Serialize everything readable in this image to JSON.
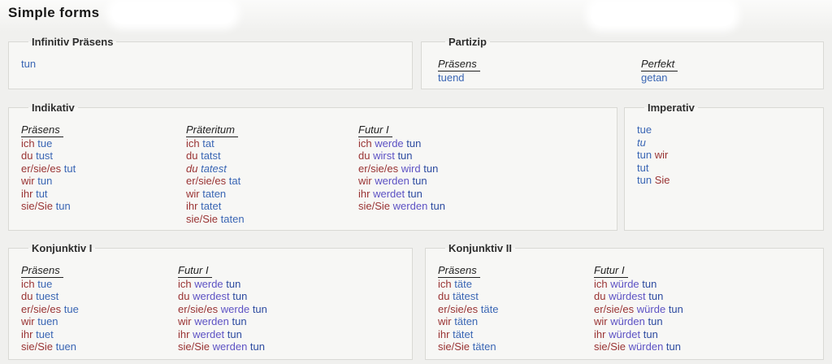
{
  "page": {
    "title": "Simple forms"
  },
  "colors": {
    "pronoun": "#993333",
    "verb": "#3a66b4",
    "aux": "#5d52c4",
    "infinitive": "#2d4ba0",
    "header_text": "#222222",
    "legend_text": "#2d2d2d",
    "border": "#d9d9d5",
    "page_bg": "#f0f0ee",
    "box_bg": "#f7f7f5"
  },
  "sections": {
    "infinitiv": {
      "legend": "Infinitiv Präsens",
      "columns": [
        {
          "header": "",
          "rows": [
            [
              {
                "t": "tun",
                "k": "verb"
              }
            ]
          ]
        }
      ]
    },
    "partizip": {
      "legend": "Partizip",
      "columns": [
        {
          "header": "Präsens",
          "rows": [
            [
              {
                "t": "tuend",
                "k": "verb"
              }
            ]
          ]
        },
        {
          "header": "Perfekt",
          "rows": [
            [
              {
                "t": "getan",
                "k": "verb"
              }
            ]
          ]
        }
      ]
    },
    "indikativ": {
      "legend": "Indikativ",
      "columns": [
        {
          "header": "Präsens",
          "rows": [
            [
              {
                "t": "ich",
                "k": "pronoun"
              },
              {
                "t": "tue",
                "k": "verb"
              }
            ],
            [
              {
                "t": "du",
                "k": "pronoun"
              },
              {
                "t": "tust",
                "k": "verb"
              }
            ],
            [
              {
                "t": "er/sie/es",
                "k": "pronoun"
              },
              {
                "t": "tut",
                "k": "verb"
              }
            ],
            [
              {
                "t": "wir",
                "k": "pronoun"
              },
              {
                "t": "tun",
                "k": "verb"
              }
            ],
            [
              {
                "t": "ihr",
                "k": "pronoun"
              },
              {
                "t": "tut",
                "k": "verb"
              }
            ],
            [
              {
                "t": "sie/Sie",
                "k": "pronoun"
              },
              {
                "t": "tun",
                "k": "verb"
              }
            ]
          ]
        },
        {
          "header": "Präteritum",
          "rows": [
            [
              {
                "t": "ich",
                "k": "pronoun"
              },
              {
                "t": "tat",
                "k": "verb"
              }
            ],
            [
              {
                "t": "du",
                "k": "pronoun"
              },
              {
                "t": "tatst",
                "k": "verb"
              }
            ],
            [
              {
                "t": "du",
                "k": "pronoun",
                "i": true
              },
              {
                "t": "tatest",
                "k": "verb",
                "i": true
              }
            ],
            [
              {
                "t": "er/sie/es",
                "k": "pronoun"
              },
              {
                "t": "tat",
                "k": "verb"
              }
            ],
            [
              {
                "t": "wir",
                "k": "pronoun"
              },
              {
                "t": "taten",
                "k": "verb"
              }
            ],
            [
              {
                "t": "ihr",
                "k": "pronoun"
              },
              {
                "t": "tatet",
                "k": "verb"
              }
            ],
            [
              {
                "t": "sie/Sie",
                "k": "pronoun"
              },
              {
                "t": "taten",
                "k": "verb"
              }
            ]
          ]
        },
        {
          "header": "Futur I",
          "rows": [
            [
              {
                "t": "ich",
                "k": "pronoun"
              },
              {
                "t": "werde",
                "k": "aux"
              },
              {
                "t": "tun",
                "k": "inf"
              }
            ],
            [
              {
                "t": "du",
                "k": "pronoun"
              },
              {
                "t": "wirst",
                "k": "aux"
              },
              {
                "t": "tun",
                "k": "inf"
              }
            ],
            [
              {
                "t": "er/sie/es",
                "k": "pronoun"
              },
              {
                "t": "wird",
                "k": "aux"
              },
              {
                "t": "tun",
                "k": "inf"
              }
            ],
            [
              {
                "t": "wir",
                "k": "pronoun"
              },
              {
                "t": "werden",
                "k": "aux"
              },
              {
                "t": "tun",
                "k": "inf"
              }
            ],
            [
              {
                "t": "ihr",
                "k": "pronoun"
              },
              {
                "t": "werdet",
                "k": "aux"
              },
              {
                "t": "tun",
                "k": "inf"
              }
            ],
            [
              {
                "t": "sie/Sie",
                "k": "pronoun"
              },
              {
                "t": "werden",
                "k": "aux"
              },
              {
                "t": "tun",
                "k": "inf"
              }
            ]
          ]
        }
      ]
    },
    "imperativ": {
      "legend": "Imperativ",
      "columns": [
        {
          "header": "",
          "rows": [
            [
              {
                "t": "tue",
                "k": "verb"
              }
            ],
            [
              {
                "t": "tu",
                "k": "verb",
                "i": true
              }
            ],
            [
              {
                "t": "tun",
                "k": "verb"
              },
              {
                "t": "wir",
                "k": "pronoun"
              }
            ],
            [
              {
                "t": "tut",
                "k": "verb"
              }
            ],
            [
              {
                "t": "tun",
                "k": "verb"
              },
              {
                "t": "Sie",
                "k": "pronoun"
              }
            ]
          ]
        }
      ]
    },
    "konjunktiv1": {
      "legend": "Konjunktiv I",
      "columns": [
        {
          "header": "Präsens",
          "rows": [
            [
              {
                "t": "ich",
                "k": "pronoun"
              },
              {
                "t": "tue",
                "k": "verb"
              }
            ],
            [
              {
                "t": "du",
                "k": "pronoun"
              },
              {
                "t": "tuest",
                "k": "verb"
              }
            ],
            [
              {
                "t": "er/sie/es",
                "k": "pronoun"
              },
              {
                "t": "tue",
                "k": "verb"
              }
            ],
            [
              {
                "t": "wir",
                "k": "pronoun"
              },
              {
                "t": "tuen",
                "k": "verb"
              }
            ],
            [
              {
                "t": "ihr",
                "k": "pronoun"
              },
              {
                "t": "tuet",
                "k": "verb"
              }
            ],
            [
              {
                "t": "sie/Sie",
                "k": "pronoun"
              },
              {
                "t": "tuen",
                "k": "verb"
              }
            ]
          ]
        },
        {
          "header": "Futur I",
          "rows": [
            [
              {
                "t": "ich",
                "k": "pronoun"
              },
              {
                "t": "werde",
                "k": "aux"
              },
              {
                "t": "tun",
                "k": "inf"
              }
            ],
            [
              {
                "t": "du",
                "k": "pronoun"
              },
              {
                "t": "werdest",
                "k": "aux"
              },
              {
                "t": "tun",
                "k": "inf"
              }
            ],
            [
              {
                "t": "er/sie/es",
                "k": "pronoun"
              },
              {
                "t": "werde",
                "k": "aux"
              },
              {
                "t": "tun",
                "k": "inf"
              }
            ],
            [
              {
                "t": "wir",
                "k": "pronoun"
              },
              {
                "t": "werden",
                "k": "aux"
              },
              {
                "t": "tun",
                "k": "inf"
              }
            ],
            [
              {
                "t": "ihr",
                "k": "pronoun"
              },
              {
                "t": "werdet",
                "k": "aux"
              },
              {
                "t": "tun",
                "k": "inf"
              }
            ],
            [
              {
                "t": "sie/Sie",
                "k": "pronoun"
              },
              {
                "t": "werden",
                "k": "aux"
              },
              {
                "t": "tun",
                "k": "inf"
              }
            ]
          ]
        }
      ]
    },
    "konjunktiv2": {
      "legend": "Konjunktiv II",
      "columns": [
        {
          "header": "Präsens",
          "rows": [
            [
              {
                "t": "ich",
                "k": "pronoun"
              },
              {
                "t": "täte",
                "k": "verb"
              }
            ],
            [
              {
                "t": "du",
                "k": "pronoun"
              },
              {
                "t": "tätest",
                "k": "verb"
              }
            ],
            [
              {
                "t": "er/sie/es",
                "k": "pronoun"
              },
              {
                "t": "täte",
                "k": "verb"
              }
            ],
            [
              {
                "t": "wir",
                "k": "pronoun"
              },
              {
                "t": "täten",
                "k": "verb"
              }
            ],
            [
              {
                "t": "ihr",
                "k": "pronoun"
              },
              {
                "t": "tätet",
                "k": "verb"
              }
            ],
            [
              {
                "t": "sie/Sie",
                "k": "pronoun"
              },
              {
                "t": "täten",
                "k": "verb"
              }
            ]
          ]
        },
        {
          "header": "Futur I",
          "rows": [
            [
              {
                "t": "ich",
                "k": "pronoun"
              },
              {
                "t": "würde",
                "k": "aux"
              },
              {
                "t": "tun",
                "k": "inf"
              }
            ],
            [
              {
                "t": "du",
                "k": "pronoun"
              },
              {
                "t": "würdest",
                "k": "aux"
              },
              {
                "t": "tun",
                "k": "inf"
              }
            ],
            [
              {
                "t": "er/sie/es",
                "k": "pronoun"
              },
              {
                "t": "würde",
                "k": "aux"
              },
              {
                "t": "tun",
                "k": "inf"
              }
            ],
            [
              {
                "t": "wir",
                "k": "pronoun"
              },
              {
                "t": "würden",
                "k": "aux"
              },
              {
                "t": "tun",
                "k": "inf"
              }
            ],
            [
              {
                "t": "ihr",
                "k": "pronoun"
              },
              {
                "t": "würdet",
                "k": "aux"
              },
              {
                "t": "tun",
                "k": "inf"
              }
            ],
            [
              {
                "t": "sie/Sie",
                "k": "pronoun"
              },
              {
                "t": "würden",
                "k": "aux"
              },
              {
                "t": "tun",
                "k": "inf"
              }
            ]
          ]
        }
      ]
    }
  }
}
